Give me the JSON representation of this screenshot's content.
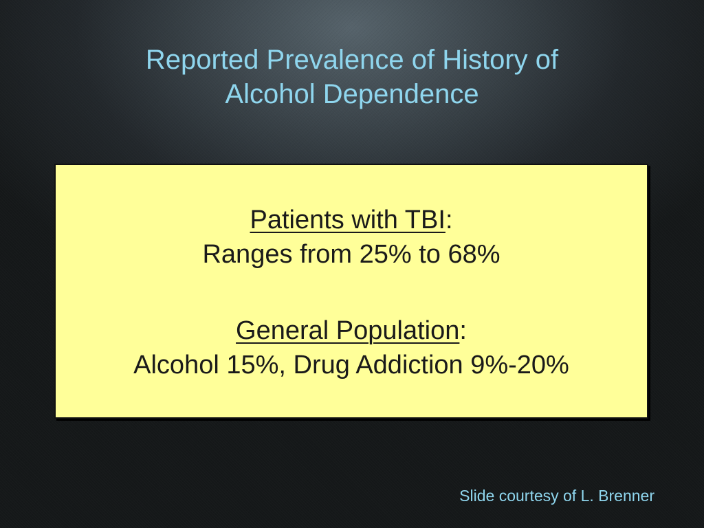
{
  "slide": {
    "title_line1": "Reported Prevalence of History of",
    "title_line2": "Alcohol Dependence",
    "tbi": {
      "heading": "Patients with TBI",
      "colon": ":",
      "value": "Ranges from 25% to 68%"
    },
    "general": {
      "heading": "General Population",
      "colon": ":",
      "value": "Alcohol 15%, Drug Addiction 9%-20%"
    },
    "credit": "Slide courtesy of L. Brenner"
  },
  "colors": {
    "title": "#8fd6ee",
    "box_fill": "#ffff99",
    "text": "#1a1a1a",
    "background": "#22272b"
  }
}
